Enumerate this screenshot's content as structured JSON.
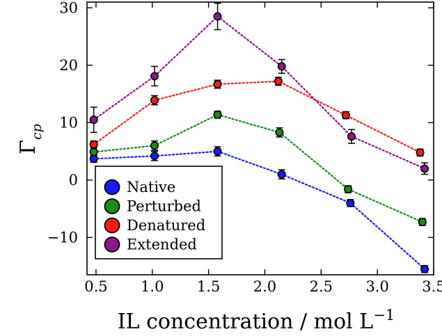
{
  "chart_data": {
    "type": "scatter",
    "x_label_main": "IL concentration / mol L",
    "x_label_exp": "−1",
    "y_label_main": "Γ",
    "y_label_sub": "cp",
    "xlim": [
      0.42,
      3.5
    ],
    "ylim": [
      -16.5,
      31
    ],
    "x_ticks": [
      0.5,
      1.0,
      1.5,
      2.0,
      2.5,
      3.0,
      3.5
    ],
    "x_tick_labels": [
      "0.5",
      "1.0",
      "1.5",
      "2.0",
      "2.5",
      "3.0",
      "3.5"
    ],
    "y_ticks": [
      -10,
      0,
      10,
      20,
      30
    ],
    "y_tick_labels": [
      "−10",
      "0",
      "10",
      "20",
      "30"
    ],
    "grid": false,
    "legend_position": "bottom-left",
    "series": [
      {
        "name": "Native",
        "color": "#1a1aff",
        "points": [
          {
            "x": 0.48,
            "y": 3.7,
            "err": 0.6
          },
          {
            "x": 1.02,
            "y": 4.2,
            "err": 0.8
          },
          {
            "x": 1.58,
            "y": 5.0,
            "err": 0.8
          },
          {
            "x": 2.15,
            "y": 1.0,
            "err": 0.8
          },
          {
            "x": 2.76,
            "y": -4.0,
            "err": 0.6
          },
          {
            "x": 3.42,
            "y": -15.5,
            "err": 0.6
          }
        ]
      },
      {
        "name": "Perturbed",
        "color": "#1a8c1a",
        "points": [
          {
            "x": 0.48,
            "y": 4.9,
            "err": 0.7
          },
          {
            "x": 1.02,
            "y": 6.0,
            "err": 0.8
          },
          {
            "x": 1.58,
            "y": 11.4,
            "err": 0.6
          },
          {
            "x": 2.13,
            "y": 8.3,
            "err": 0.8
          },
          {
            "x": 2.74,
            "y": -1.6,
            "err": 0.6
          },
          {
            "x": 3.4,
            "y": -7.3,
            "err": 0.6
          }
        ]
      },
      {
        "name": "Denatured",
        "color": "#ff1a1a",
        "points": [
          {
            "x": 0.48,
            "y": 6.2,
            "err": 0.6
          },
          {
            "x": 1.02,
            "y": 13.9,
            "err": 0.8
          },
          {
            "x": 1.58,
            "y": 16.7,
            "err": 0.7
          },
          {
            "x": 2.12,
            "y": 17.2,
            "err": 0.7
          },
          {
            "x": 2.72,
            "y": 11.3,
            "err": 0.6
          },
          {
            "x": 3.38,
            "y": 4.8,
            "err": 0.6
          }
        ]
      },
      {
        "name": "Extended",
        "color": "#8b1a8b",
        "points": [
          {
            "x": 0.48,
            "y": 10.5,
            "err": 2.2
          },
          {
            "x": 1.02,
            "y": 18.1,
            "err": 1.7
          },
          {
            "x": 1.58,
            "y": 28.5,
            "err": 2.3
          },
          {
            "x": 2.15,
            "y": 19.8,
            "err": 1.2
          },
          {
            "x": 2.77,
            "y": 7.6,
            "err": 1.2
          },
          {
            "x": 3.42,
            "y": 2.0,
            "err": 1.0
          }
        ]
      }
    ]
  }
}
